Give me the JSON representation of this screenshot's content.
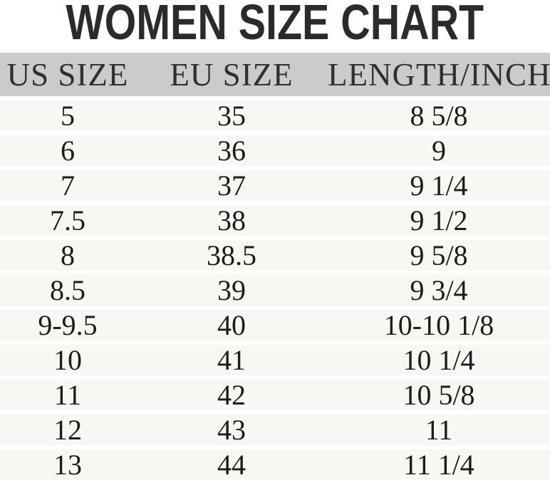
{
  "page": {
    "title": "WOMEN SIZE CHART"
  },
  "colors": {
    "title_text": "#2b2b27",
    "header_background": "#cbcbc9",
    "header_text": "#312f2c",
    "row_background": "#f8f7f4",
    "row_text": "#1d1c1a",
    "page_background": "#ffffff"
  },
  "chart_data": {
    "type": "table",
    "title": "WOMEN SIZE CHART",
    "columns": [
      "US SIZE",
      "EU SIZE",
      "LENGTH/INCH"
    ],
    "rows": [
      [
        "5",
        "35",
        "8 5/8"
      ],
      [
        "6",
        "36",
        "9"
      ],
      [
        "7",
        "37",
        "9 1/4"
      ],
      [
        "7.5",
        "38",
        "9 1/2"
      ],
      [
        "8",
        "38.5",
        "9 5/8"
      ],
      [
        "8.5",
        "39",
        "9 3/4"
      ],
      [
        "9-9.5",
        "40",
        "10-10 1/8"
      ],
      [
        "10",
        "41",
        "10 1/4"
      ],
      [
        "11",
        "42",
        "10 5/8"
      ],
      [
        "12",
        "43",
        "11"
      ],
      [
        "13",
        "44",
        "11 1/4"
      ]
    ]
  }
}
